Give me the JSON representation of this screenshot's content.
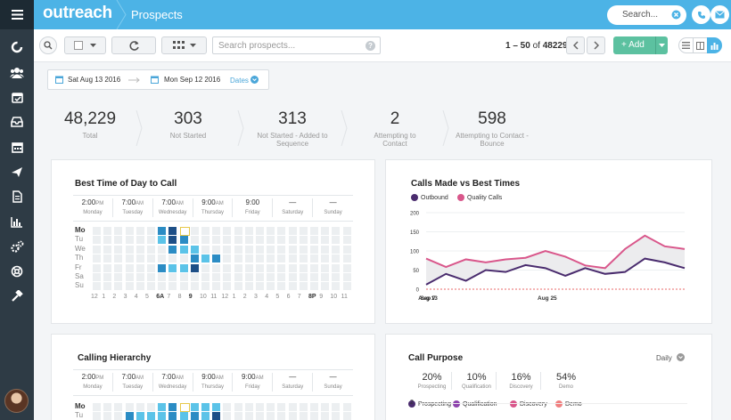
{
  "app": {
    "brand": "outreach",
    "title": "Prospects"
  },
  "top": {
    "search_placeholder": "Search..."
  },
  "toolbar": {
    "search_placeholder": "Search prospects...",
    "pager_range": "1 – 50",
    "pager_of": "of",
    "pager_total": "48229",
    "add_label": "+ Add"
  },
  "dates": {
    "start": "Sat Aug 13 2016",
    "end": "Mon Sep 12 2016",
    "dropdown": "Dates"
  },
  "stats": [
    {
      "value": "48,229",
      "label": "Total"
    },
    {
      "value": "303",
      "label": "Not Started"
    },
    {
      "value": "313",
      "label": "Not Started - Added to Sequence"
    },
    {
      "value": "2",
      "label": "Attempting to Contact"
    },
    {
      "value": "598",
      "label": "Attempting to Contact - Bounce"
    }
  ],
  "best_time": {
    "title": "Best Time of Day to Call",
    "days": [
      {
        "time": "2:00",
        "ampm": "PM",
        "day": "Monday"
      },
      {
        "time": "7:00",
        "ampm": "AM",
        "day": "Tuesday"
      },
      {
        "time": "7:00",
        "ampm": "AM",
        "day": "Wednesday"
      },
      {
        "time": "9:00",
        "ampm": "AM",
        "day": "Thursday"
      },
      {
        "time": "9:00",
        "ampm": "",
        "day": "Friday"
      },
      {
        "time": "—",
        "ampm": "",
        "day": "Saturday"
      },
      {
        "time": "—",
        "ampm": "",
        "day": "Sunday"
      }
    ],
    "rows": [
      "Mo",
      "Tu",
      "We",
      "Th",
      "Fr",
      "Sa",
      "Su"
    ],
    "hours": [
      "12",
      "1",
      "2",
      "3",
      "4",
      "5",
      "6A",
      "7",
      "8",
      "9",
      "10",
      "11",
      "12",
      "1",
      "2",
      "3",
      "4",
      "5",
      "6",
      "7",
      "8P",
      "9",
      "10",
      "11"
    ]
  },
  "calls_chart": {
    "title": "Calls Made vs Best Times",
    "chart_data": {
      "type": "line",
      "x": [
        "Aug 13",
        "Aug 15",
        "Aug 17",
        "Aug 19",
        "Aug 21",
        "Aug 23",
        "Aug 25",
        "Aug 27",
        "Aug 29",
        "Aug 31",
        "Sep 2",
        "Sep 4",
        "Sep 6",
        "Sep 8"
      ],
      "xticks": [
        "Aug 13",
        "Aug 25",
        "Sep 7"
      ],
      "ylim": [
        0,
        200
      ],
      "yticks": [
        "200",
        "150",
        "100",
        "50",
        "0"
      ],
      "series": [
        {
          "name": "Outbound",
          "color": "#4a2c6e",
          "values": [
            12,
            40,
            22,
            50,
            45,
            63,
            55,
            35,
            55,
            40,
            45,
            80,
            70,
            55
          ]
        },
        {
          "name": "Quality Calls",
          "color": "#d9578b",
          "values": [
            80,
            58,
            78,
            70,
            78,
            82,
            100,
            85,
            62,
            55,
            105,
            140,
            112,
            105
          ]
        }
      ],
      "legend_position": "top-left",
      "grid": true
    }
  },
  "hierarchy": {
    "title": "Calling Hierarchy",
    "days": [
      {
        "time": "2:00",
        "ampm": "PM",
        "day": "Monday"
      },
      {
        "time": "7:00",
        "ampm": "AM",
        "day": "Tuesday"
      },
      {
        "time": "7:00",
        "ampm": "AM",
        "day": "Wednesday"
      },
      {
        "time": "9:00",
        "ampm": "AM",
        "day": "Thursday"
      },
      {
        "time": "9:00",
        "ampm": "AM",
        "day": "Friday"
      },
      {
        "time": "—",
        "ampm": "",
        "day": "Saturday"
      },
      {
        "time": "—",
        "ampm": "",
        "day": "Sunday"
      }
    ],
    "rows": [
      "Mo",
      "Tu"
    ]
  },
  "purpose": {
    "title": "Call Purpose",
    "dropdown": "Daily",
    "stats": [
      {
        "value": "20%",
        "label": "Prospecting"
      },
      {
        "value": "10%",
        "label": "Qualification"
      },
      {
        "value": "16%",
        "label": "Discovery"
      },
      {
        "value": "54%",
        "label": "Demo"
      }
    ],
    "legend": [
      {
        "name": "Prospecting",
        "color": "#4a2c6e"
      },
      {
        "name": "Qualification",
        "color": "#8e44ad"
      },
      {
        "name": "Discovery",
        "color": "#d9578b"
      },
      {
        "name": "Demo",
        "color": "#f08080"
      }
    ],
    "y_top": "2"
  }
}
